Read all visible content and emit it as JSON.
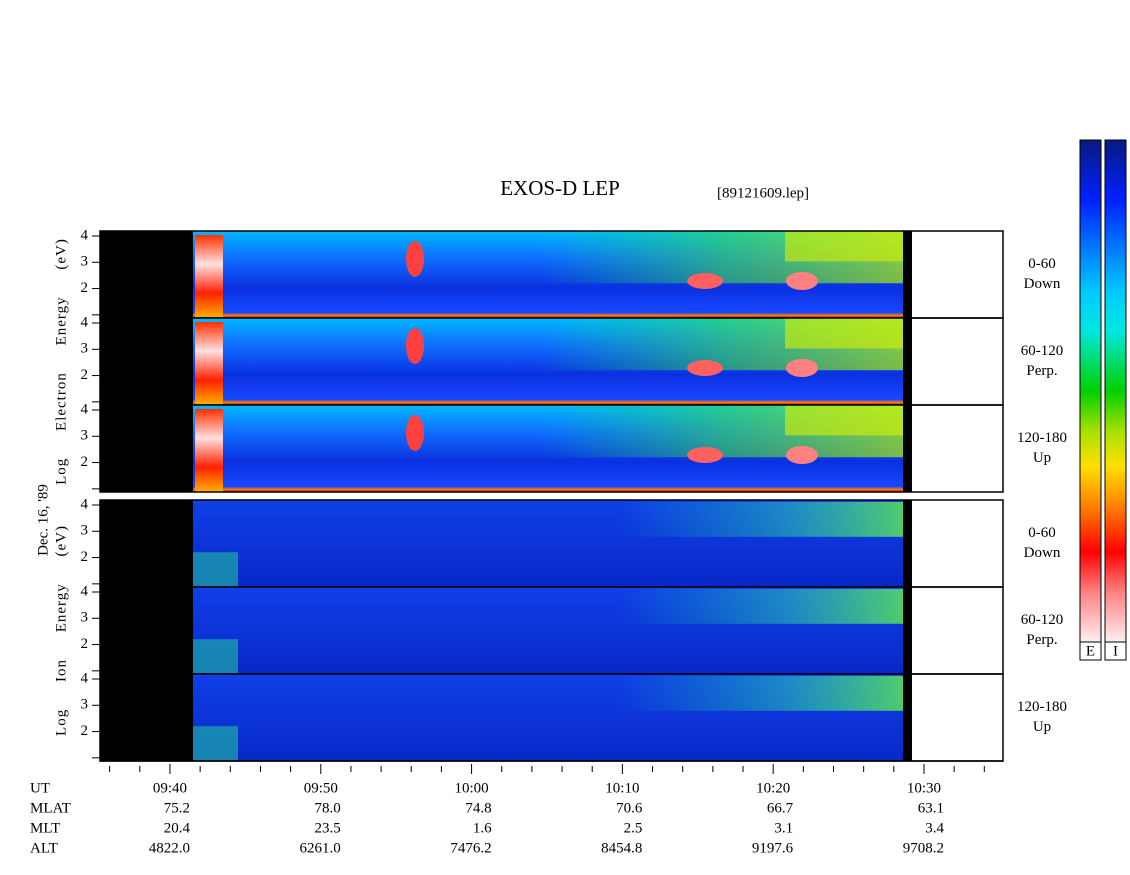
{
  "chart_data": {
    "type": "spectrogram",
    "title": "EXOS-D LEP",
    "subtitle": "[89121609.lep]",
    "date_label": "Dec. 16, '89",
    "xlim": [
      575.36,
      635.24
    ],
    "xticks": [
      {
        "value": 580,
        "label": "09:40"
      },
      {
        "value": 590,
        "label": "09:50"
      },
      {
        "value": 600,
        "label": "10:00"
      },
      {
        "value": 610,
        "label": "10:10"
      },
      {
        "value": 620,
        "label": "10:20"
      },
      {
        "value": 630,
        "label": "10:30"
      }
    ],
    "xminorticks": [
      576,
      578,
      582,
      584,
      586,
      588,
      592,
      594,
      596,
      598,
      602,
      604,
      606,
      608,
      612,
      614,
      616,
      618,
      622,
      624,
      626,
      628,
      632,
      634
    ],
    "groups": [
      {
        "ylabel": "Log Electron Energy (eV)",
        "species": "electron",
        "panels": [
          {
            "label": [
              "0-60",
              "Down"
            ],
            "ylim": [
              0.88,
              4.19
            ],
            "yticks": [
              2,
              3,
              4
            ],
            "yminorticks": [
              1
            ]
          },
          {
            "label": [
              "60-120",
              "Perp."
            ],
            "ylim": [
              0.88,
              4.19
            ],
            "yticks": [
              2,
              3,
              4
            ],
            "yminorticks": [
              1
            ]
          },
          {
            "label": [
              "120-180",
              "Up"
            ],
            "ylim": [
              0.88,
              4.19
            ],
            "yticks": [
              2,
              3,
              4
            ],
            "yminorticks": [
              1
            ]
          }
        ]
      },
      {
        "ylabel": "Log Ion Energy (eV)",
        "species": "ion",
        "panels": [
          {
            "label": [
              "0-60",
              "Down"
            ],
            "ylim": [
              0.88,
              4.19
            ],
            "yticks": [
              2,
              3,
              4
            ],
            "yminorticks": [
              1
            ]
          },
          {
            "label": [
              "60-120",
              "Perp."
            ],
            "ylim": [
              0.88,
              4.19
            ],
            "yticks": [
              2,
              3,
              4
            ],
            "yminorticks": [
              1
            ]
          },
          {
            "label": [
              "120-180",
              "Up"
            ],
            "ylim": [
              0.88,
              4.19
            ],
            "yticks": [
              2,
              3,
              4
            ],
            "yminorticks": [
              1
            ]
          }
        ]
      }
    ],
    "ephemeris": [
      {
        "name": "UT"
      },
      {
        "name": "MLAT",
        "values": [
          "75.2",
          "78.0",
          "74.8",
          "70.6",
          "66.7",
          "63.1"
        ]
      },
      {
        "name": "MLT",
        "values": [
          "20.4",
          "23.5",
          "1.6",
          "2.5",
          "3.1",
          "3.4"
        ]
      },
      {
        "name": "ALT",
        "values": [
          "4822.0",
          "6261.0",
          "7476.2",
          "8454.8",
          "9197.6",
          "9708.2"
        ]
      }
    ],
    "colorbars": [
      "E",
      "I"
    ]
  }
}
